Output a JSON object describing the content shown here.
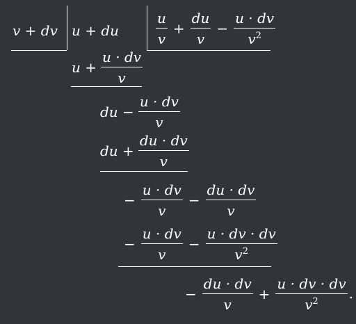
{
  "divisor": {
    "text": "v + dv"
  },
  "dividend": {
    "text": "u + du"
  },
  "quotient": {
    "term1_num": "u",
    "term1_den": "v",
    "op1": "+",
    "term2_num": "du",
    "term2_den": "v",
    "op2": "−",
    "term3_num": "u · dv",
    "term3_den": "v"
  },
  "steps": [
    {
      "lead": "u +",
      "frac_num": "u · dv",
      "frac_den": "v"
    },
    {
      "lead": "du −",
      "frac_num": "u · dv",
      "frac_den": "v"
    },
    {
      "lead": "du +",
      "frac_num": "du · dv",
      "frac_den": "v"
    },
    {
      "lead": "−",
      "f1_num": "u · dv",
      "f1_den": "v",
      "mid": "−",
      "f2_num": "du · dv",
      "f2_den": "v"
    },
    {
      "lead": "−",
      "f1_num": "u · dv",
      "f1_den": "v",
      "mid": "−",
      "f2_num": "u · dv · dv",
      "f2_den": "v"
    },
    {
      "lead": "−",
      "f1_num": "du · dv",
      "f1_den": "v",
      "mid": "+",
      "f2_num": "u · dv · dv",
      "f2_den": "v",
      "tail": "."
    }
  ]
}
